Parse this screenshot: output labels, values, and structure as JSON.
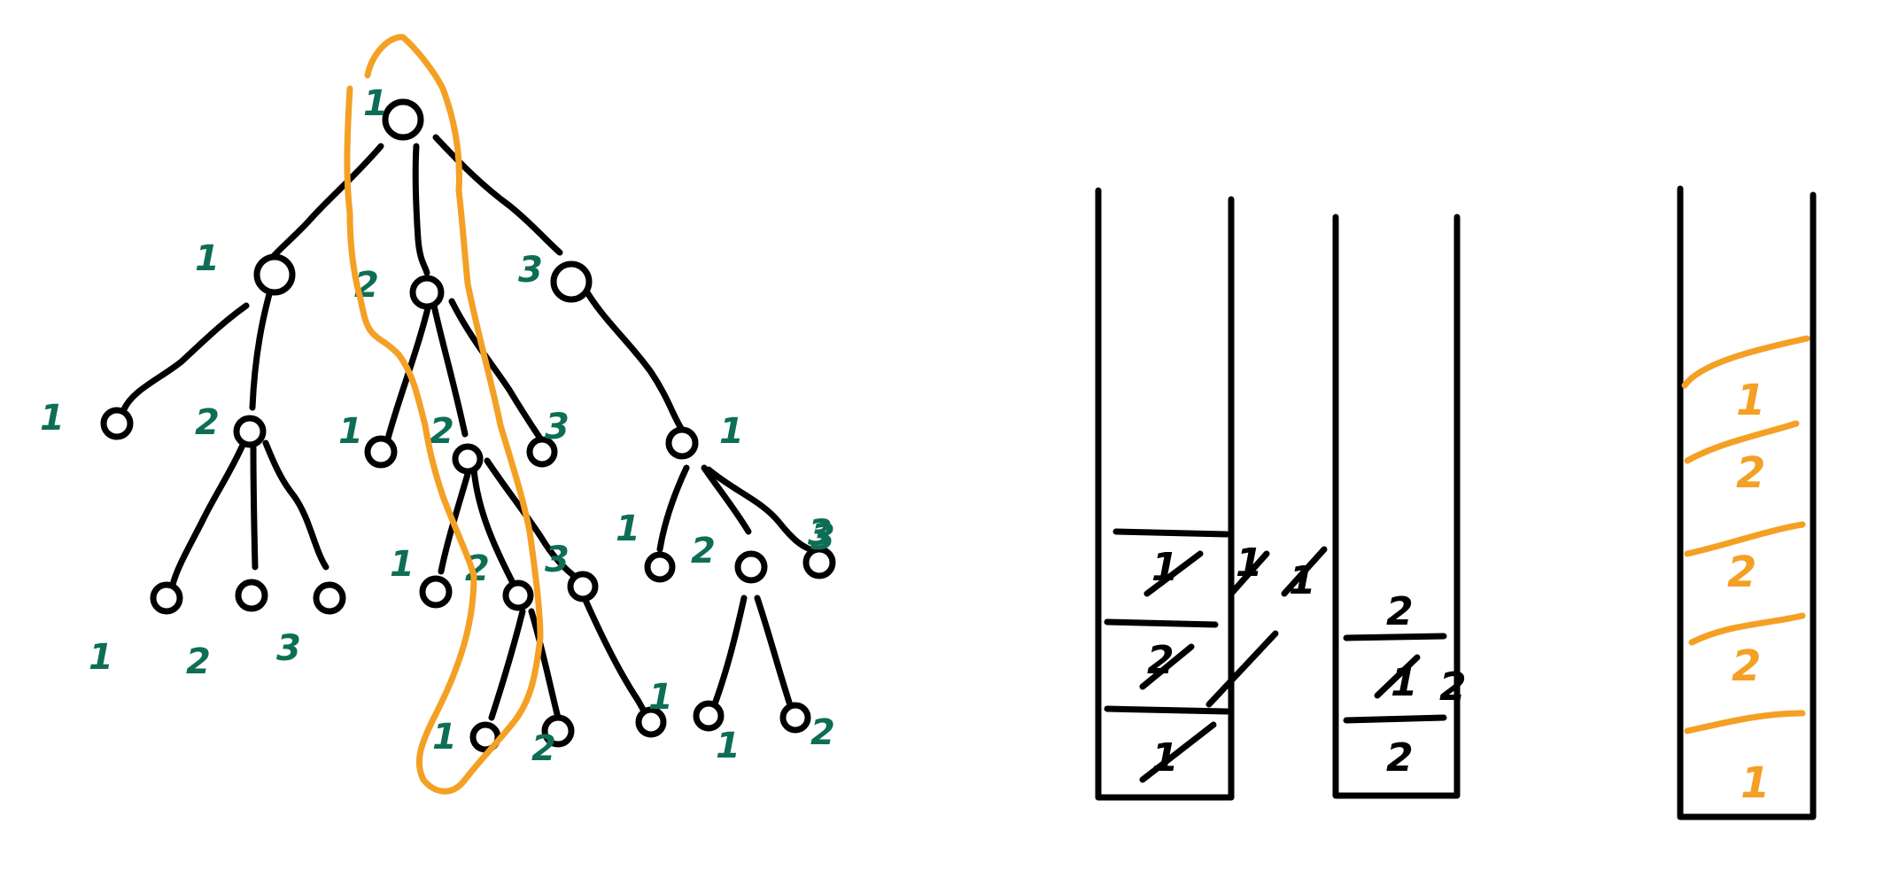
{
  "colors": {
    "ink": "#000000",
    "edge_label": "#0e6e55",
    "highlight": "#f4a024",
    "background": "#ffffff"
  },
  "tree": {
    "root_label": "1",
    "level1_labels": [
      "1",
      "2",
      "3"
    ],
    "level2_labels": [
      "1",
      "2",
      "1",
      "2",
      "3",
      "1",
      "3"
    ],
    "level3_labels": [
      "1",
      "2",
      "3",
      "1",
      "2",
      "3",
      "1",
      "2",
      "3"
    ],
    "level4_labels": [
      "1",
      "2",
      "1",
      "1",
      "2"
    ]
  },
  "stack_a": {
    "cells": [
      "1",
      "2",
      "1"
    ],
    "side_marks": [
      "1",
      "1"
    ]
  },
  "stack_b": {
    "cells": [
      "2",
      "1",
      "2"
    ],
    "side_mark": "2"
  },
  "stack_c": {
    "cells": [
      "1",
      "2",
      "2",
      "2",
      "1"
    ]
  }
}
